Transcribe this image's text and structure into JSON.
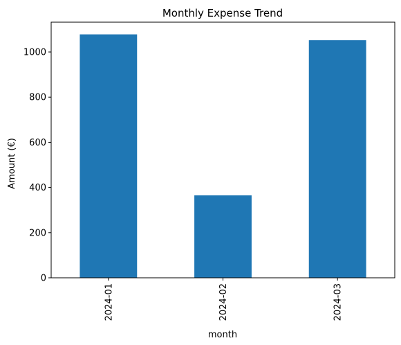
{
  "chart_data": {
    "type": "bar",
    "title": "Monthly Expense Trend",
    "xlabel": "month",
    "ylabel": "Amount (€)",
    "categories": [
      "2024-01",
      "2024-02",
      "2024-03"
    ],
    "values": [
      1078,
      365,
      1052
    ],
    "ylim": [
      0,
      1132
    ],
    "yticks": [
      0,
      200,
      400,
      600,
      800,
      1000
    ],
    "bar_color": "#1f77b4",
    "grid": false,
    "legend": "none"
  }
}
